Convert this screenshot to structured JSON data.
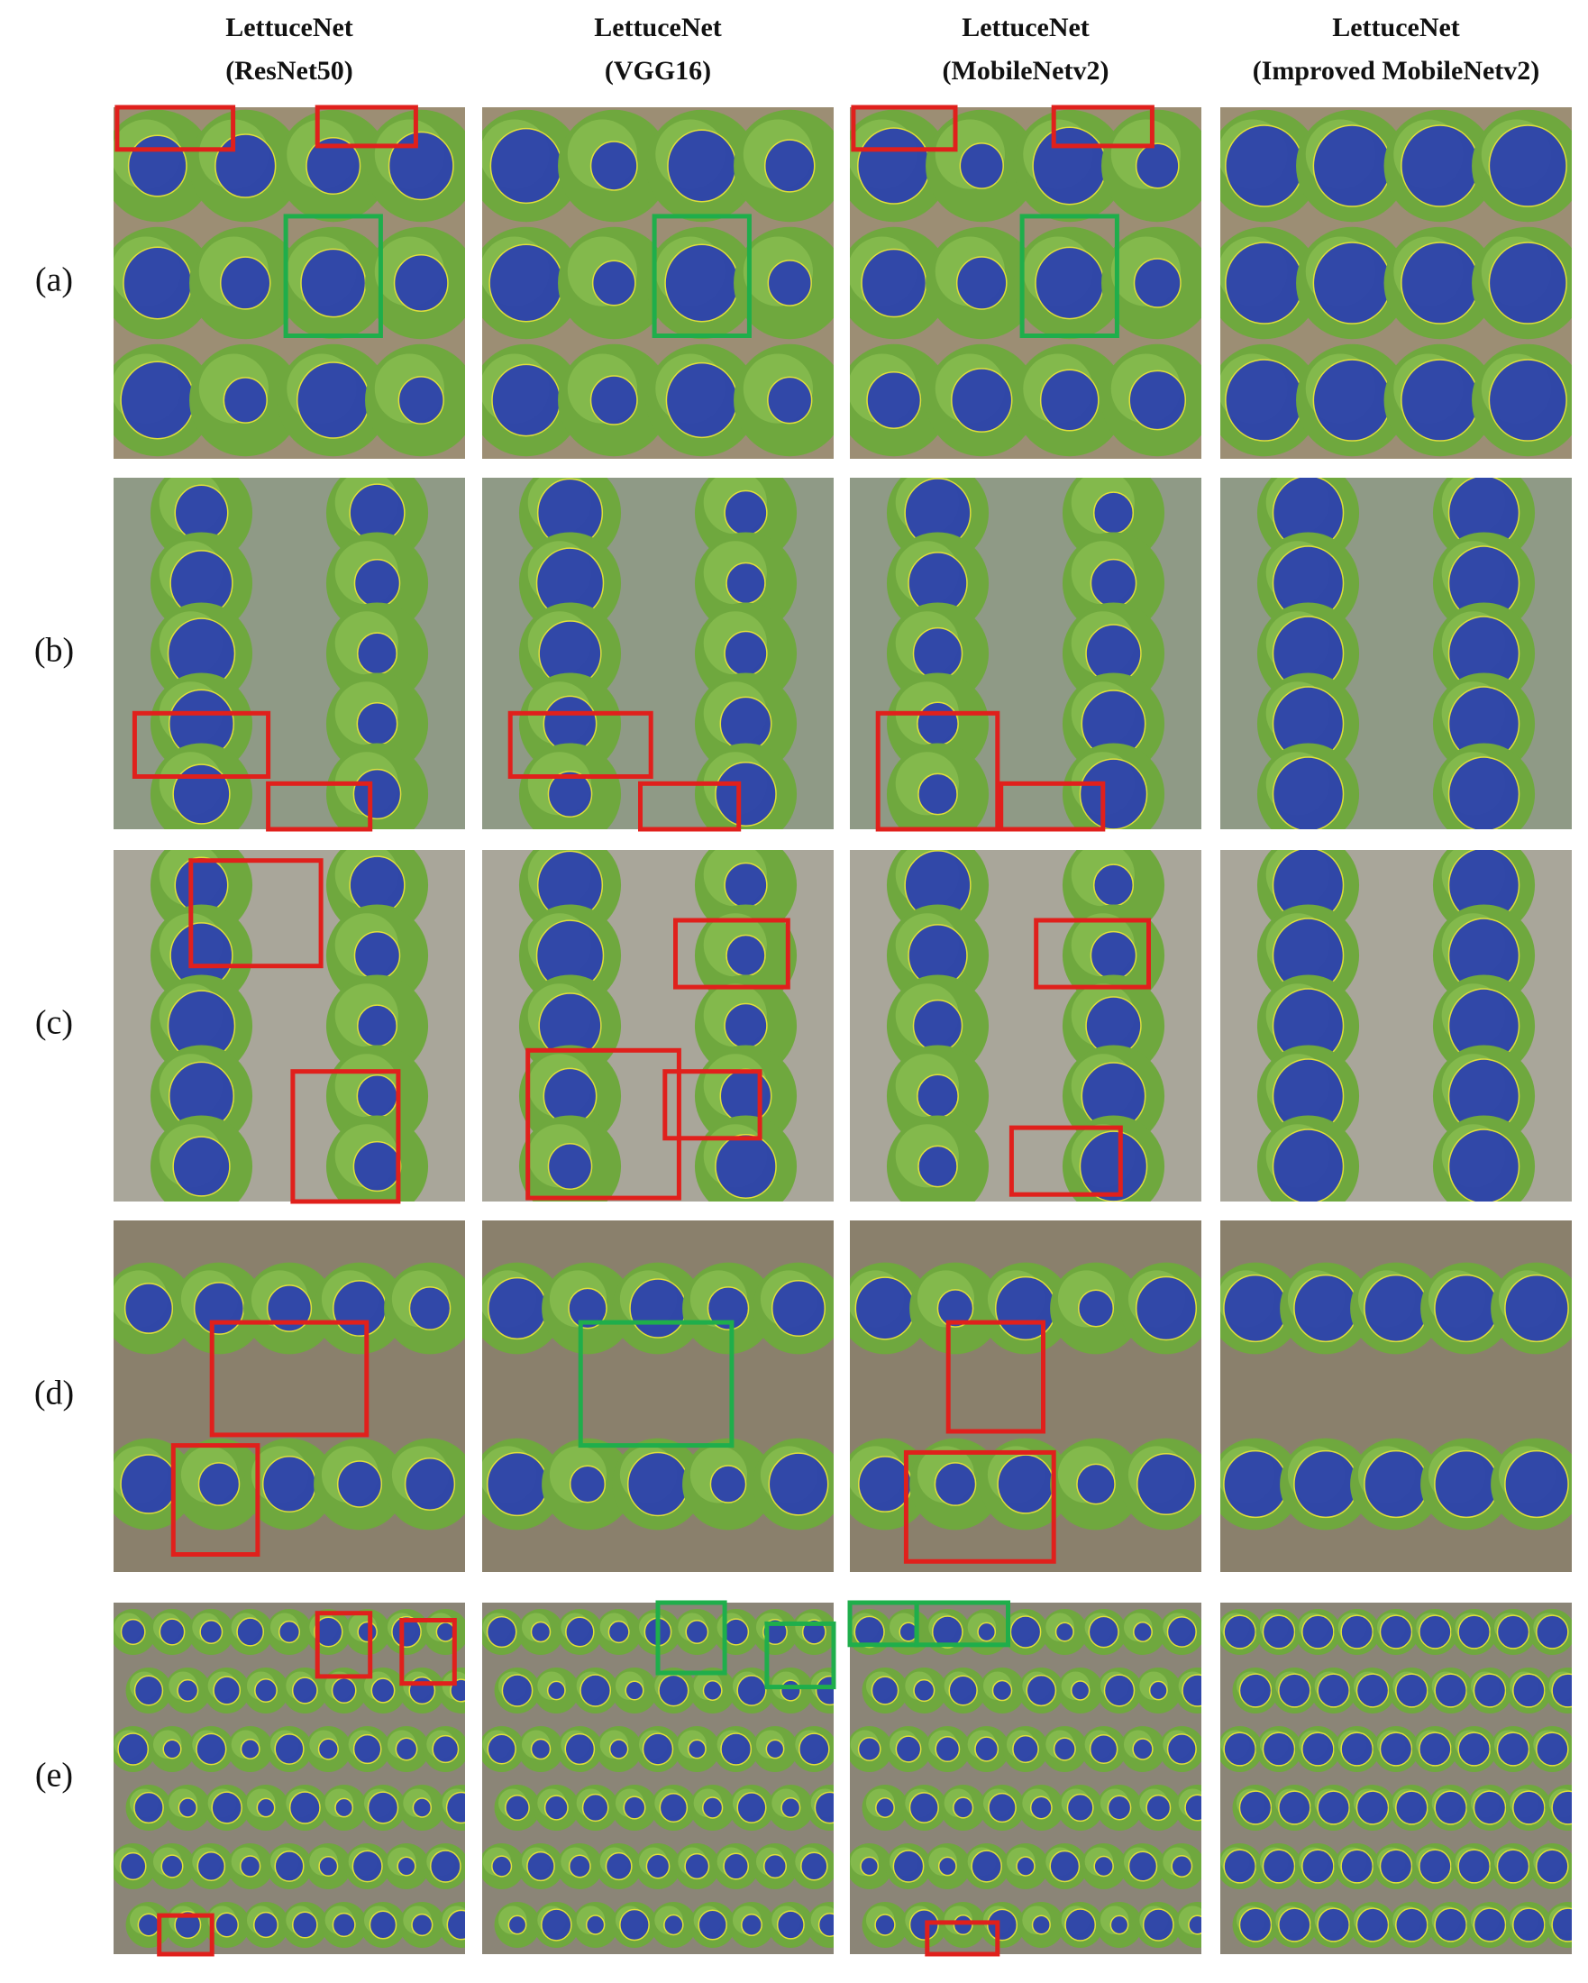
{
  "columns": [
    {
      "model": "LettuceNet",
      "backbone": "(ResNet50)"
    },
    {
      "model": "LettuceNet",
      "backbone": "(VGG16)"
    },
    {
      "model": "LettuceNet",
      "backbone": "(MobileNetv2)"
    },
    {
      "model": "LettuceNet",
      "backbone": "(Improved MobileNetv2)"
    }
  ],
  "rows": [
    "(a)",
    "(b)",
    "(c)",
    "(d)",
    "(e)"
  ]
}
